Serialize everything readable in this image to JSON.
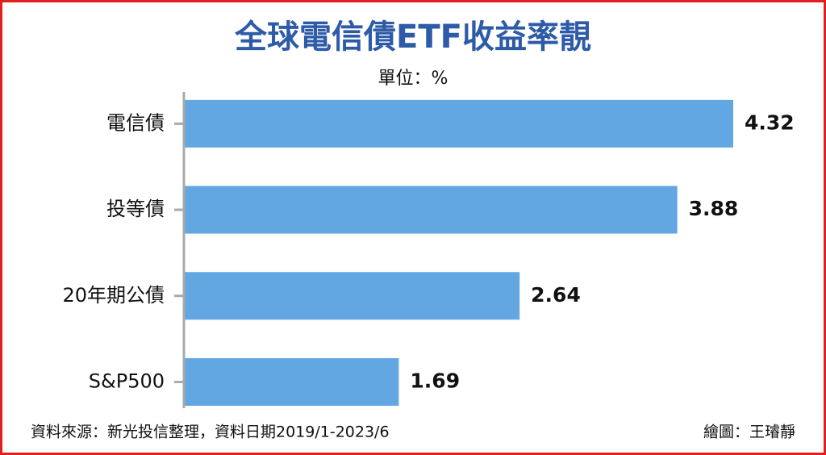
{
  "chart_data": {
    "type": "hbar",
    "title": "全球電信債ETF收益率靚",
    "subtitle": "單位：%",
    "categories": [
      "電信債",
      "投等債",
      "20年期公債",
      "S&P500"
    ],
    "values": [
      4.32,
      3.88,
      2.64,
      1.69
    ],
    "color": "#62a6e2",
    "source": "資料來源：新光投信整理，資料日期2019/1-2023/6",
    "credit": "繪圖：王璿靜"
  }
}
